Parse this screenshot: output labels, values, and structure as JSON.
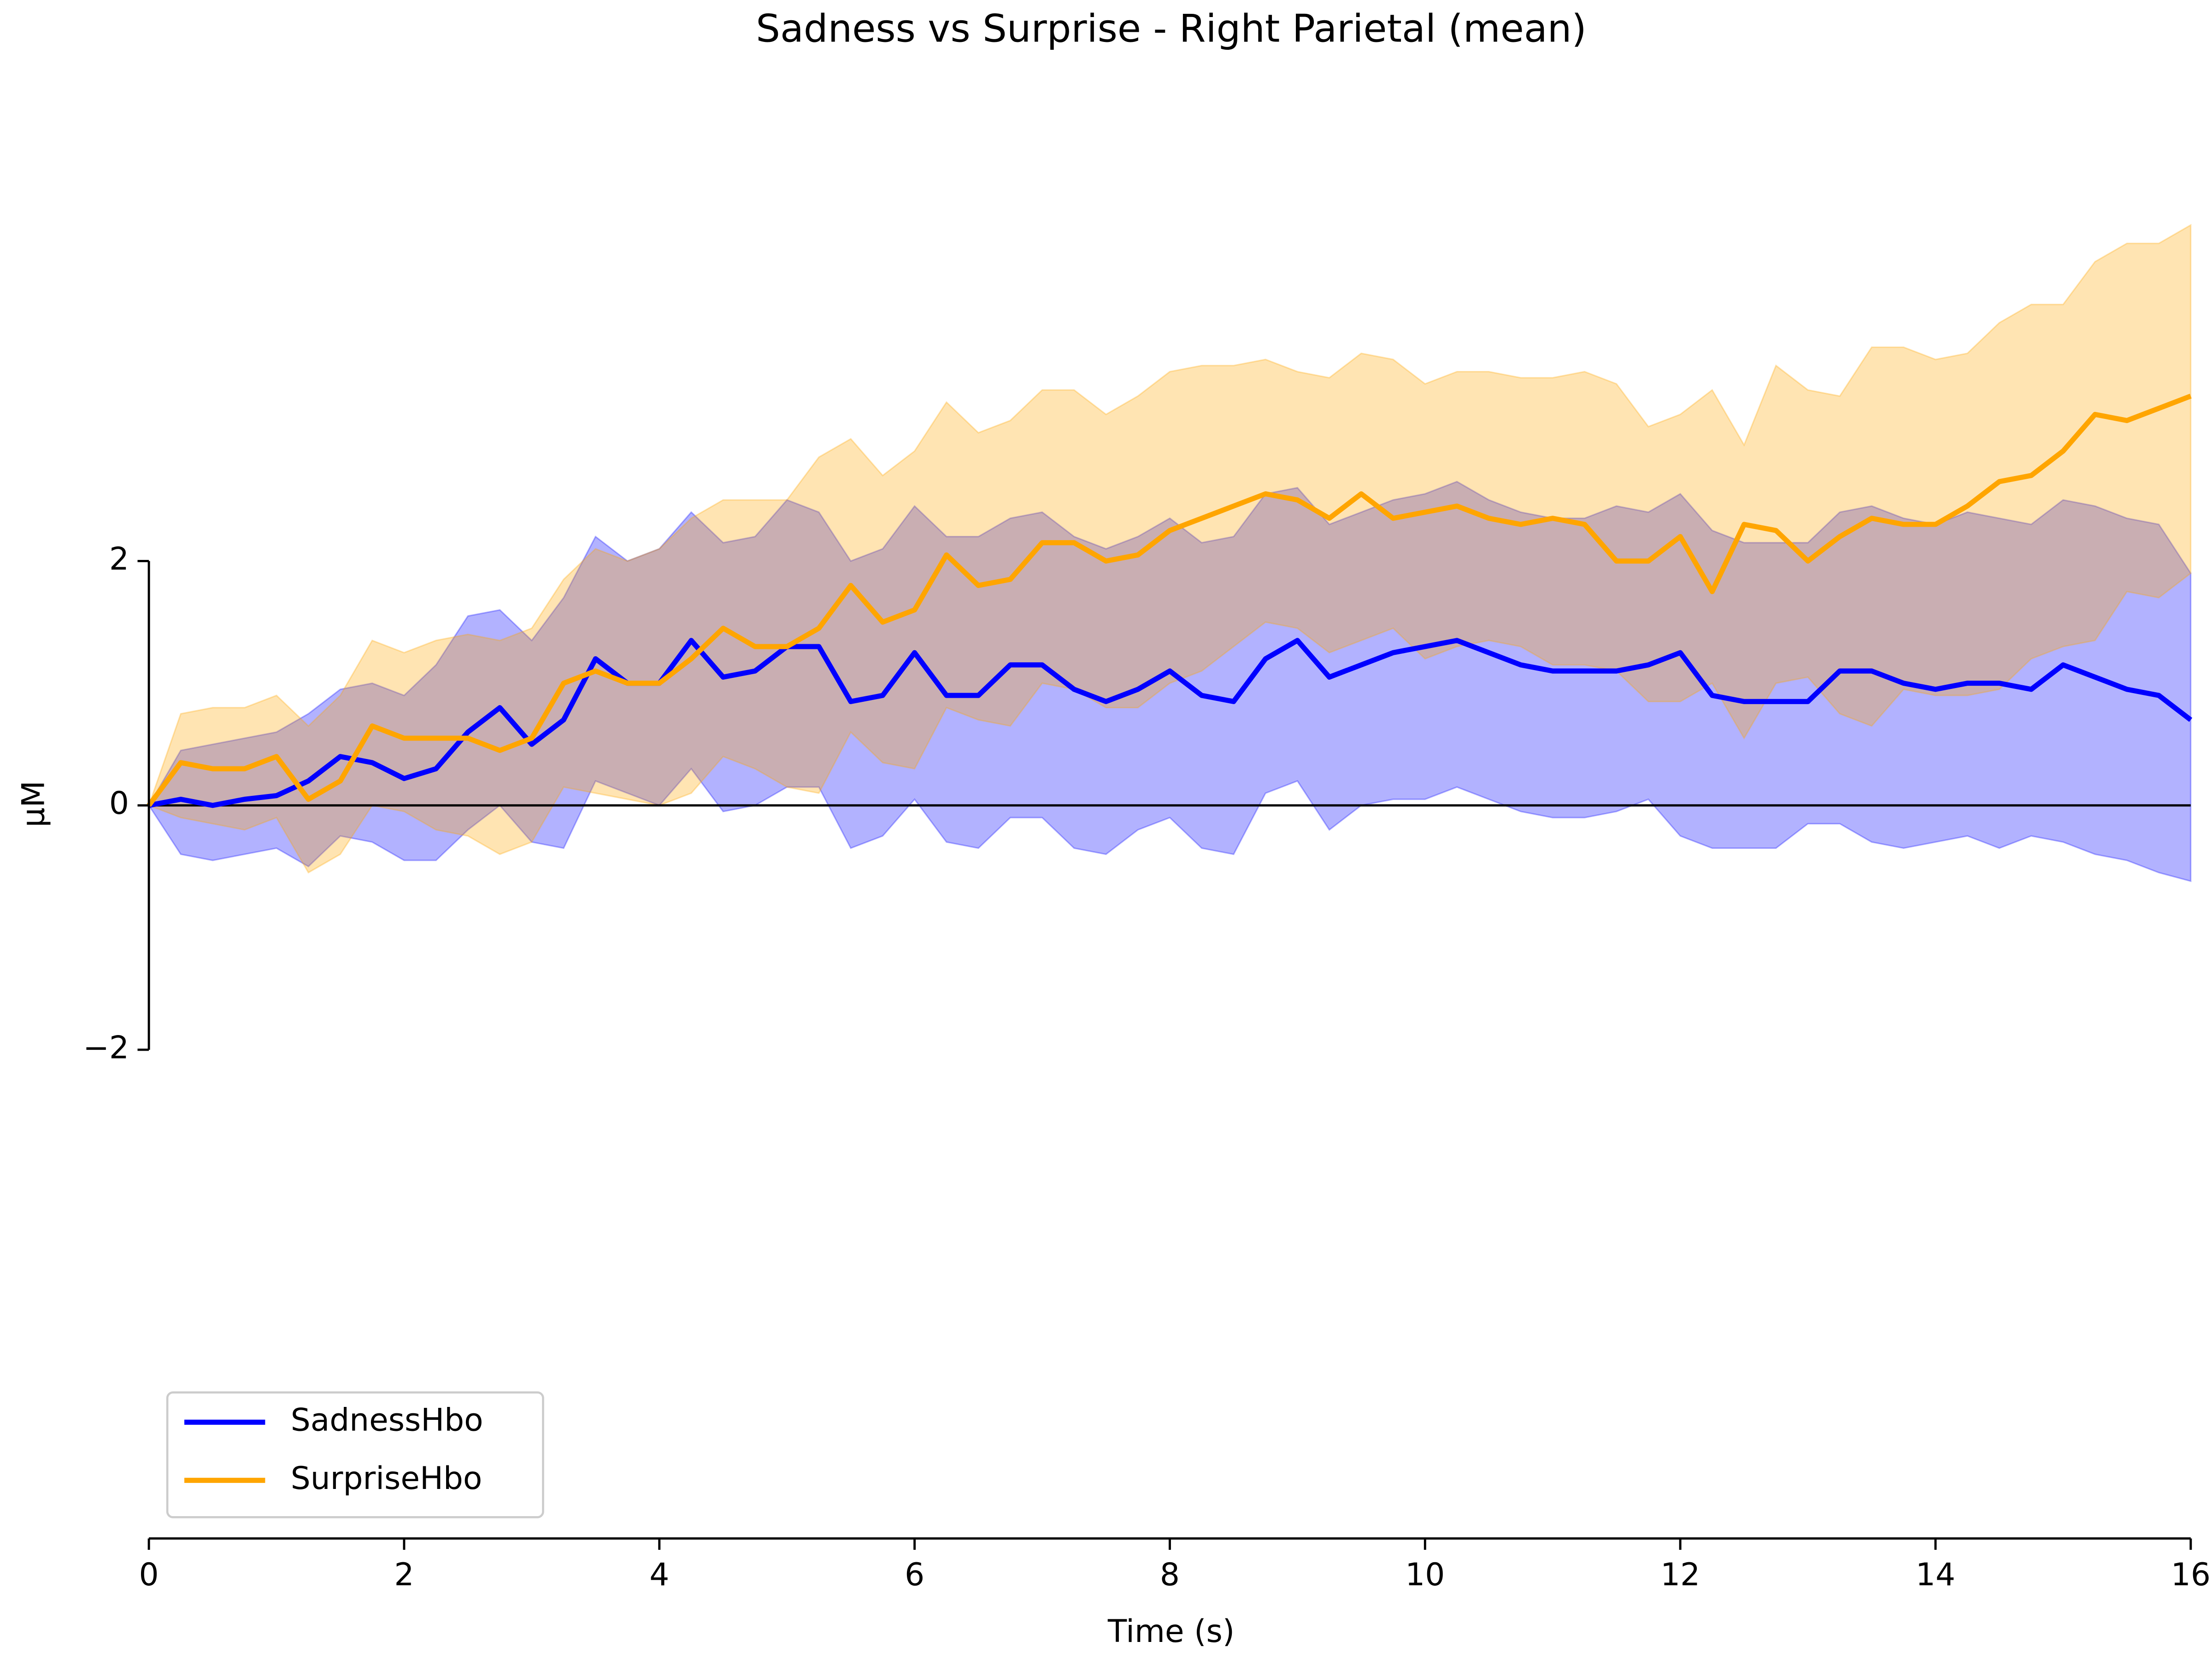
{
  "chart_data": {
    "type": "line",
    "title": "Sadness vs Surprise - Right Parietal (mean)",
    "xlabel": "Time (s)",
    "ylabel": "μM",
    "x": [
      0,
      0.25,
      0.5,
      0.75,
      1,
      1.25,
      1.5,
      1.75,
      2,
      2.25,
      2.5,
      2.75,
      3,
      3.25,
      3.5,
      3.75,
      4,
      4.25,
      4.5,
      4.75,
      5,
      5.25,
      5.5,
      5.75,
      6,
      6.25,
      6.5,
      6.75,
      7,
      7.25,
      7.5,
      7.75,
      8,
      8.25,
      8.5,
      8.75,
      9,
      9.25,
      9.5,
      9.75,
      10,
      10.25,
      10.5,
      10.75,
      11,
      11.25,
      11.5,
      11.75,
      12,
      12.25,
      12.5,
      12.75,
      13,
      13.25,
      13.5,
      13.75,
      14,
      14.25,
      14.5,
      14.75,
      15,
      15.25,
      15.5,
      15.75,
      16
    ],
    "series": [
      {
        "name": "SadnessHbo",
        "color": "#0000ff",
        "values": [
          0,
          0.05,
          0,
          0.05,
          0.08,
          0.2,
          0.4,
          0.35,
          0.22,
          0.3,
          0.6,
          0.8,
          0.5,
          0.7,
          1.2,
          1.0,
          1.0,
          1.35,
          1.05,
          1.1,
          1.3,
          1.3,
          0.85,
          0.9,
          1.25,
          0.9,
          0.9,
          1.15,
          1.15,
          0.95,
          0.85,
          0.95,
          1.1,
          0.9,
          0.85,
          1.2,
          1.35,
          1.05,
          1.15,
          1.25,
          1.3,
          1.35,
          1.25,
          1.15,
          1.1,
          1.1,
          1.1,
          1.15,
          1.25,
          0.9,
          0.85,
          0.85,
          0.85,
          1.1,
          1.1,
          1.0,
          0.95,
          1.0,
          1.0,
          0.95,
          1.15,
          1.05,
          0.95,
          0.9,
          0.7
        ],
        "lower": [
          0,
          -0.4,
          -0.45,
          -0.4,
          -0.35,
          -0.5,
          -0.25,
          -0.3,
          -0.45,
          -0.45,
          -0.2,
          0,
          -0.3,
          -0.35,
          0.2,
          0.1,
          0,
          0.3,
          -0.05,
          0,
          0.15,
          0.15,
          -0.35,
          -0.25,
          0.05,
          -0.3,
          -0.35,
          -0.1,
          -0.1,
          -0.35,
          -0.4,
          -0.2,
          -0.1,
          -0.35,
          -0.4,
          0.1,
          0.2,
          -0.2,
          0,
          0.05,
          0.05,
          0.15,
          0.05,
          -0.05,
          -0.1,
          -0.1,
          -0.05,
          0.05,
          -0.25,
          -0.35,
          -0.35,
          -0.35,
          -0.15,
          -0.15,
          -0.3,
          -0.35,
          -0.3,
          -0.25,
          -0.35,
          -0.25,
          -0.3,
          -0.4,
          -0.45,
          -0.55,
          -0.62
        ],
        "upper": [
          0,
          0.45,
          0.5,
          0.55,
          0.6,
          0.75,
          0.95,
          1.0,
          0.9,
          1.15,
          1.55,
          1.6,
          1.35,
          1.7,
          2.2,
          2.0,
          2.1,
          2.4,
          2.15,
          2.2,
          2.5,
          2.4,
          2.0,
          2.1,
          2.45,
          2.2,
          2.2,
          2.35,
          2.4,
          2.2,
          2.1,
          2.2,
          2.35,
          2.15,
          2.2,
          2.55,
          2.6,
          2.3,
          2.4,
          2.5,
          2.55,
          2.65,
          2.5,
          2.4,
          2.35,
          2.35,
          2.45,
          2.4,
          2.55,
          2.25,
          2.15,
          2.15,
          2.15,
          2.4,
          2.45,
          2.35,
          2.3,
          2.4,
          2.35,
          2.3,
          2.5,
          2.45,
          2.35,
          2.3,
          1.9
        ]
      },
      {
        "name": "SurpriseHbo",
        "color": "#ffa500",
        "values": [
          0,
          0.35,
          0.3,
          0.3,
          0.4,
          0.05,
          0.2,
          0.65,
          0.55,
          0.55,
          0.55,
          0.45,
          0.55,
          1.0,
          1.1,
          1.0,
          1.0,
          1.2,
          1.45,
          1.3,
          1.3,
          1.45,
          1.8,
          1.5,
          1.6,
          2.05,
          1.8,
          1.85,
          2.15,
          2.15,
          2.0,
          2.05,
          2.25,
          2.35,
          2.45,
          2.55,
          2.5,
          2.35,
          2.55,
          2.35,
          2.4,
          2.45,
          2.35,
          2.3,
          2.35,
          2.3,
          2.0,
          2.0,
          2.2,
          1.75,
          2.3,
          2.25,
          2.0,
          2.2,
          2.35,
          2.3,
          2.3,
          2.45,
          2.65,
          2.7,
          2.9,
          3.2,
          3.15,
          3.25,
          3.35
        ],
        "lower": [
          0,
          -0.1,
          -0.15,
          -0.2,
          -0.1,
          -0.55,
          -0.4,
          0,
          -0.05,
          -0.2,
          -0.25,
          -0.4,
          -0.3,
          0.15,
          0.1,
          0.05,
          0,
          0.1,
          0.4,
          0.3,
          0.15,
          0.1,
          0.6,
          0.35,
          0.3,
          0.8,
          0.7,
          0.65,
          1.0,
          0.95,
          0.8,
          0.8,
          1.0,
          1.1,
          1.3,
          1.5,
          1.45,
          1.25,
          1.35,
          1.45,
          1.2,
          1.3,
          1.35,
          1.3,
          1.15,
          1.15,
          1.1,
          0.85,
          0.85,
          1.0,
          0.55,
          1.0,
          1.05,
          0.75,
          0.65,
          0.95,
          0.9,
          0.9,
          0.95,
          1.2,
          1.3,
          1.35,
          1.75,
          1.7,
          1.9
        ],
        "upper": [
          0,
          0.75,
          0.8,
          0.8,
          0.9,
          0.65,
          0.9,
          1.35,
          1.25,
          1.35,
          1.4,
          1.35,
          1.45,
          1.85,
          2.1,
          2.0,
          2.1,
          2.35,
          2.5,
          2.5,
          2.5,
          2.85,
          3.0,
          2.7,
          2.9,
          3.3,
          3.05,
          3.15,
          3.4,
          3.4,
          3.2,
          3.35,
          3.55,
          3.6,
          3.6,
          3.65,
          3.55,
          3.5,
          3.7,
          3.65,
          3.45,
          3.55,
          3.55,
          3.5,
          3.5,
          3.55,
          3.45,
          3.1,
          3.2,
          3.4,
          2.95,
          3.6,
          3.4,
          3.35,
          3.75,
          3.75,
          3.65,
          3.7,
          3.95,
          4.1,
          4.1,
          4.45,
          4.6,
          4.6,
          4.75
        ]
      }
    ],
    "xlim": [
      0,
      16
    ],
    "xticks": [
      0,
      2,
      4,
      6,
      8,
      10,
      12,
      14,
      16
    ],
    "ylim": [
      -6,
      6
    ],
    "yticks": [
      {
        "value": -2,
        "label": "−2"
      },
      0,
      2
    ],
    "hline": 0,
    "legend": "lower left"
  }
}
